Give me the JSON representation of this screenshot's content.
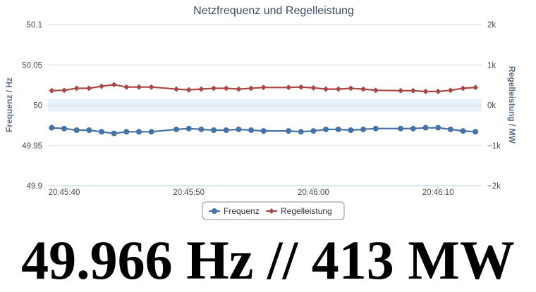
{
  "chart_data": {
    "type": "line",
    "title": "Netzfrequenz und Regelleistung",
    "y_axes": {
      "left": {
        "label": "Frequenz / Hz",
        "ylim": [
          49.9,
          50.1
        ],
        "tick_values": [
          49.9,
          49.95,
          50,
          50.05,
          50.1
        ],
        "tick_labels": [
          "49.9",
          "49.95",
          "50",
          "50.05",
          "50.1"
        ]
      },
      "right": {
        "label": "Regelleistung / MW",
        "ylim": [
          -2000,
          2000
        ],
        "tick_values": [
          -2000,
          -1000,
          0,
          1000,
          2000
        ],
        "tick_labels": [
          "−2k",
          "−1k",
          "0k",
          "1k",
          "2k"
        ]
      }
    },
    "x_axis": {
      "unit": "seconds",
      "xlim": [
        38.7,
        73.5
      ],
      "tick_values": [
        40,
        50,
        60,
        70
      ],
      "tick_labels": [
        "20:45:40",
        "20:45:50",
        "20:46:00",
        "20:46:10"
      ]
    },
    "plot_band": {
      "axis": "left",
      "from": 49.992,
      "to": 50.008,
      "color": "#e7f1fa"
    },
    "grid": true,
    "legend_position": "bottom-center",
    "series": [
      {
        "name": "Frequenz",
        "axis": "left",
        "color": "#4572a7",
        "marker": "circle",
        "x": [
          39,
          40,
          41,
          42,
          43,
          44,
          45,
          46,
          47,
          49,
          50,
          51,
          52,
          53,
          54,
          55,
          56,
          58,
          59,
          60,
          61,
          62,
          63,
          64,
          65,
          67,
          68,
          69,
          70,
          71,
          72,
          73
        ],
        "values": [
          49.972,
          49.971,
          49.969,
          49.969,
          49.967,
          49.965,
          49.967,
          49.967,
          49.967,
          49.97,
          49.971,
          49.97,
          49.969,
          49.969,
          49.97,
          49.969,
          49.968,
          49.968,
          49.967,
          49.968,
          49.97,
          49.97,
          49.969,
          49.97,
          49.971,
          49.971,
          49.971,
          49.972,
          49.972,
          49.97,
          49.968,
          49.967
        ]
      },
      {
        "name": "Regelleistung",
        "axis": "right",
        "color": "#aa4643",
        "marker": "diamond",
        "x": [
          39,
          40,
          41,
          42,
          43,
          44,
          45,
          46,
          47,
          49,
          50,
          51,
          52,
          53,
          54,
          55,
          56,
          58,
          59,
          60,
          61,
          62,
          63,
          64,
          65,
          67,
          68,
          69,
          70,
          71,
          72,
          73
        ],
        "values": [
          360,
          370,
          420,
          420,
          470,
          510,
          450,
          450,
          450,
          400,
          380,
          400,
          420,
          420,
          400,
          420,
          440,
          440,
          450,
          430,
          400,
          400,
          420,
          400,
          370,
          360,
          360,
          340,
          340,
          370,
          420,
          440
        ]
      }
    ]
  },
  "readout": {
    "text": "49.966 Hz // 413 MW"
  }
}
